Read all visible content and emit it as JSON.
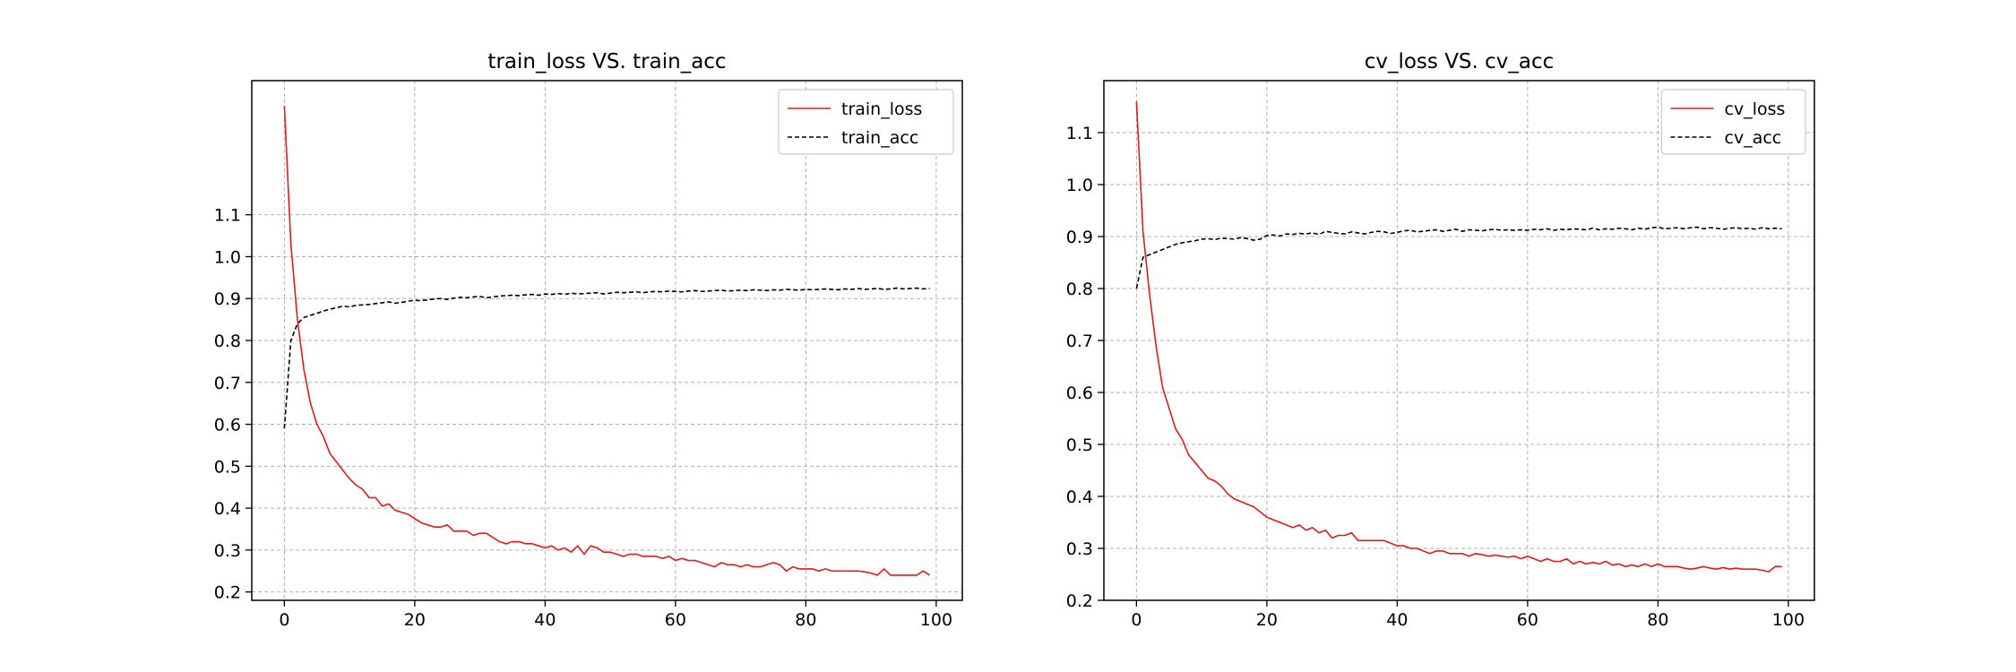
{
  "chart_data": [
    {
      "type": "line",
      "title": "train_loss VS. train_acc",
      "xlabel": "",
      "ylabel": "",
      "xlim": [
        -5,
        104
      ],
      "ylim": [
        0.18,
        1.42
      ],
      "xticks": [
        0,
        20,
        40,
        60,
        80,
        100
      ],
      "yticks": [
        0.2,
        0.3,
        0.4,
        0.5,
        0.6,
        0.7,
        0.8,
        0.9,
        1.0,
        1.1
      ],
      "grid": true,
      "legend_placement": "top-right",
      "series": [
        {
          "name": "train_loss",
          "color": "#e31a1c",
          "linestyle": "solid",
          "x": [
            0,
            1,
            2,
            3,
            4,
            5,
            6,
            7,
            8,
            9,
            10,
            11,
            12,
            13,
            14,
            15,
            16,
            17,
            18,
            19,
            20,
            21,
            22,
            23,
            24,
            25,
            26,
            27,
            28,
            29,
            30,
            31,
            32,
            33,
            34,
            35,
            36,
            37,
            38,
            39,
            40,
            41,
            42,
            43,
            44,
            45,
            46,
            47,
            48,
            49,
            50,
            51,
            52,
            53,
            54,
            55,
            56,
            57,
            58,
            59,
            60,
            61,
            62,
            63,
            64,
            65,
            66,
            67,
            68,
            69,
            70,
            71,
            72,
            73,
            74,
            75,
            76,
            77,
            78,
            79,
            80,
            81,
            82,
            83,
            84,
            85,
            86,
            87,
            88,
            89,
            90,
            91,
            92,
            93,
            94,
            95,
            96,
            97,
            98,
            99
          ],
          "values": [
            1.36,
            1.03,
            0.85,
            0.73,
            0.65,
            0.6,
            0.57,
            0.53,
            0.51,
            0.49,
            0.47,
            0.455,
            0.445,
            0.425,
            0.425,
            0.405,
            0.41,
            0.395,
            0.39,
            0.385,
            0.375,
            0.365,
            0.36,
            0.355,
            0.355,
            0.36,
            0.345,
            0.345,
            0.345,
            0.335,
            0.34,
            0.34,
            0.33,
            0.32,
            0.315,
            0.32,
            0.32,
            0.315,
            0.315,
            0.31,
            0.305,
            0.31,
            0.3,
            0.305,
            0.295,
            0.31,
            0.29,
            0.31,
            0.305,
            0.295,
            0.295,
            0.29,
            0.285,
            0.29,
            0.29,
            0.285,
            0.285,
            0.285,
            0.28,
            0.285,
            0.275,
            0.28,
            0.275,
            0.275,
            0.27,
            0.265,
            0.26,
            0.27,
            0.265,
            0.265,
            0.26,
            0.265,
            0.26,
            0.26,
            0.265,
            0.27,
            0.265,
            0.25,
            0.26,
            0.255,
            0.255,
            0.255,
            0.25,
            0.255,
            0.25,
            0.25,
            0.25,
            0.25,
            0.25,
            0.248,
            0.245,
            0.24,
            0.255,
            0.24,
            0.24,
            0.24,
            0.24,
            0.24,
            0.25,
            0.24
          ]
        },
        {
          "name": "train_acc",
          "color": "#000000",
          "linestyle": "dashed",
          "x": [
            0,
            1,
            2,
            3,
            4,
            5,
            6,
            7,
            8,
            9,
            10,
            11,
            12,
            13,
            14,
            15,
            16,
            17,
            18,
            19,
            20,
            21,
            22,
            23,
            24,
            25,
            26,
            27,
            28,
            29,
            30,
            31,
            32,
            33,
            34,
            35,
            36,
            37,
            38,
            39,
            40,
            41,
            42,
            43,
            44,
            45,
            46,
            47,
            48,
            49,
            50,
            51,
            52,
            53,
            54,
            55,
            56,
            57,
            58,
            59,
            60,
            61,
            62,
            63,
            64,
            65,
            66,
            67,
            68,
            69,
            70,
            71,
            72,
            73,
            74,
            75,
            76,
            77,
            78,
            79,
            80,
            81,
            82,
            83,
            84,
            85,
            86,
            87,
            88,
            89,
            90,
            91,
            92,
            93,
            94,
            95,
            96,
            97,
            98,
            99
          ],
          "values": [
            0.59,
            0.8,
            0.84,
            0.855,
            0.86,
            0.865,
            0.87,
            0.875,
            0.878,
            0.882,
            0.88,
            0.884,
            0.885,
            0.886,
            0.888,
            0.89,
            0.892,
            0.889,
            0.891,
            0.894,
            0.896,
            0.895,
            0.897,
            0.899,
            0.9,
            0.898,
            0.901,
            0.903,
            0.902,
            0.904,
            0.905,
            0.902,
            0.904,
            0.906,
            0.907,
            0.908,
            0.907,
            0.909,
            0.91,
            0.908,
            0.911,
            0.91,
            0.912,
            0.91,
            0.913,
            0.911,
            0.912,
            0.913,
            0.914,
            0.911,
            0.913,
            0.915,
            0.914,
            0.915,
            0.916,
            0.914,
            0.916,
            0.917,
            0.916,
            0.918,
            0.917,
            0.916,
            0.918,
            0.919,
            0.917,
            0.918,
            0.919,
            0.92,
            0.918,
            0.919,
            0.92,
            0.919,
            0.921,
            0.92,
            0.919,
            0.921,
            0.92,
            0.922,
            0.921,
            0.92,
            0.922,
            0.921,
            0.922,
            0.923,
            0.922,
            0.921,
            0.923,
            0.922,
            0.924,
            0.922,
            0.923,
            0.924,
            0.922,
            0.923,
            0.925,
            0.923,
            0.924,
            0.925,
            0.923,
            0.924
          ]
        }
      ]
    },
    {
      "type": "line",
      "title": "cv_loss VS. cv_acc",
      "xlabel": "",
      "ylabel": "",
      "xlim": [
        -5,
        104
      ],
      "ylim": [
        0.2,
        1.2
      ],
      "xticks": [
        0,
        20,
        40,
        60,
        80,
        100
      ],
      "yticks": [
        0.2,
        0.3,
        0.4,
        0.5,
        0.6,
        0.7,
        0.8,
        0.9,
        1.0,
        1.1
      ],
      "grid": true,
      "legend_placement": "top-right",
      "series": [
        {
          "name": "cv_loss",
          "color": "#e31a1c",
          "linestyle": "solid",
          "x": [
            0,
            1,
            2,
            3,
            4,
            5,
            6,
            7,
            8,
            9,
            10,
            11,
            12,
            13,
            14,
            15,
            16,
            17,
            18,
            19,
            20,
            21,
            22,
            23,
            24,
            25,
            26,
            27,
            28,
            29,
            30,
            31,
            32,
            33,
            34,
            35,
            36,
            37,
            38,
            39,
            40,
            41,
            42,
            43,
            44,
            45,
            46,
            47,
            48,
            49,
            50,
            51,
            52,
            53,
            54,
            55,
            56,
            57,
            58,
            59,
            60,
            61,
            62,
            63,
            64,
            65,
            66,
            67,
            68,
            69,
            70,
            71,
            72,
            73,
            74,
            75,
            76,
            77,
            78,
            79,
            80,
            81,
            82,
            83,
            84,
            85,
            86,
            87,
            88,
            89,
            90,
            91,
            92,
            93,
            94,
            95,
            96,
            97,
            98,
            99
          ],
          "values": [
            1.16,
            0.91,
            0.79,
            0.69,
            0.61,
            0.57,
            0.53,
            0.51,
            0.48,
            0.465,
            0.45,
            0.435,
            0.43,
            0.42,
            0.405,
            0.395,
            0.39,
            0.385,
            0.38,
            0.37,
            0.36,
            0.355,
            0.35,
            0.345,
            0.34,
            0.345,
            0.335,
            0.34,
            0.33,
            0.335,
            0.32,
            0.325,
            0.325,
            0.33,
            0.315,
            0.315,
            0.315,
            0.315,
            0.315,
            0.31,
            0.305,
            0.305,
            0.3,
            0.3,
            0.295,
            0.29,
            0.295,
            0.295,
            0.29,
            0.29,
            0.29,
            0.285,
            0.29,
            0.288,
            0.285,
            0.287,
            0.285,
            0.283,
            0.285,
            0.28,
            0.285,
            0.28,
            0.275,
            0.28,
            0.275,
            0.275,
            0.28,
            0.27,
            0.275,
            0.27,
            0.273,
            0.27,
            0.275,
            0.268,
            0.27,
            0.265,
            0.268,
            0.265,
            0.27,
            0.265,
            0.27,
            0.265,
            0.265,
            0.265,
            0.262,
            0.26,
            0.262,
            0.265,
            0.262,
            0.26,
            0.263,
            0.26,
            0.262,
            0.26,
            0.26,
            0.26,
            0.258,
            0.255,
            0.265,
            0.265
          ]
        },
        {
          "name": "cv_acc",
          "color": "#000000",
          "linestyle": "dashed",
          "x": [
            0,
            1,
            2,
            3,
            4,
            5,
            6,
            7,
            8,
            9,
            10,
            11,
            12,
            13,
            14,
            15,
            16,
            17,
            18,
            19,
            20,
            21,
            22,
            23,
            24,
            25,
            26,
            27,
            28,
            29,
            30,
            31,
            32,
            33,
            34,
            35,
            36,
            37,
            38,
            39,
            40,
            41,
            42,
            43,
            44,
            45,
            46,
            47,
            48,
            49,
            50,
            51,
            52,
            53,
            54,
            55,
            56,
            57,
            58,
            59,
            60,
            61,
            62,
            63,
            64,
            65,
            66,
            67,
            68,
            69,
            70,
            71,
            72,
            73,
            74,
            75,
            76,
            77,
            78,
            79,
            80,
            81,
            82,
            83,
            84,
            85,
            86,
            87,
            88,
            89,
            90,
            91,
            92,
            93,
            94,
            95,
            96,
            97,
            98,
            99
          ],
          "values": [
            0.8,
            0.86,
            0.865,
            0.87,
            0.875,
            0.88,
            0.885,
            0.888,
            0.89,
            0.892,
            0.895,
            0.896,
            0.894,
            0.897,
            0.896,
            0.895,
            0.898,
            0.896,
            0.893,
            0.895,
            0.902,
            0.903,
            0.901,
            0.905,
            0.904,
            0.906,
            0.905,
            0.907,
            0.904,
            0.91,
            0.908,
            0.906,
            0.905,
            0.909,
            0.907,
            0.905,
            0.908,
            0.91,
            0.909,
            0.906,
            0.908,
            0.911,
            0.912,
            0.909,
            0.91,
            0.912,
            0.913,
            0.91,
            0.912,
            0.914,
            0.91,
            0.913,
            0.912,
            0.911,
            0.913,
            0.914,
            0.912,
            0.913,
            0.912,
            0.913,
            0.912,
            0.914,
            0.913,
            0.915,
            0.912,
            0.914,
            0.913,
            0.915,
            0.914,
            0.913,
            0.916,
            0.913,
            0.915,
            0.914,
            0.916,
            0.915,
            0.913,
            0.916,
            0.914,
            0.917,
            0.918,
            0.915,
            0.916,
            0.917,
            0.915,
            0.917,
            0.918,
            0.915,
            0.917,
            0.916,
            0.914,
            0.916,
            0.917,
            0.915,
            0.916,
            0.914,
            0.917,
            0.915,
            0.916,
            0.915
          ]
        }
      ]
    }
  ]
}
